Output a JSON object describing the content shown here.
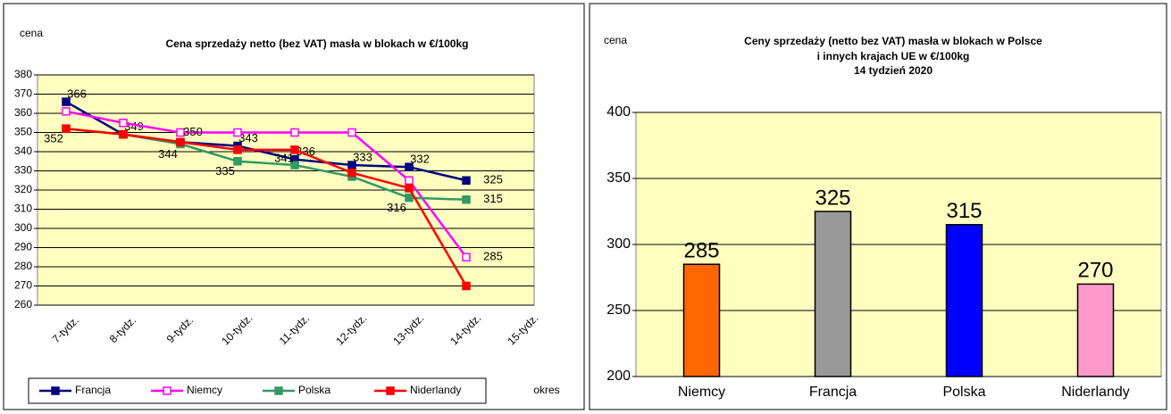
{
  "chart_data": [
    {
      "type": "line",
      "title": "Cena sprzedaży netto (bez VAT) masła w blokach w €/100kg",
      "y_label": "cena",
      "x_label": "okres",
      "categories": [
        "7-tydz.",
        "8-tydz.",
        "9-tydz.",
        "10-tydz.",
        "11-tydz.",
        "12-tydz.",
        "13-tydz.",
        "14-tydz.",
        "15-tydz."
      ],
      "ylim": [
        260,
        380
      ],
      "yticks": [
        260,
        270,
        280,
        290,
        300,
        310,
        320,
        330,
        340,
        350,
        360,
        370,
        380
      ],
      "grid": true,
      "background": "#ffffc0",
      "legend": "bottom",
      "series": [
        {
          "name": "Francja",
          "color": "#000080",
          "marker": "filled",
          "values": [
            366,
            349,
            345,
            343,
            336,
            333,
            332,
            325,
            null
          ],
          "value_labels": [
            "366",
            "349",
            null,
            "343",
            "336",
            "333",
            "332",
            "325",
            null
          ]
        },
        {
          "name": "Niemcy",
          "color": "#ff00ff",
          "marker": "open",
          "values": [
            361,
            355,
            350,
            350,
            350,
            350,
            325,
            285,
            null
          ],
          "value_labels": [
            null,
            null,
            "350",
            null,
            null,
            null,
            null,
            "285",
            null
          ]
        },
        {
          "name": "Polska",
          "color": "#339966",
          "marker": "filled",
          "values": [
            352,
            349,
            344,
            335,
            333,
            327,
            316,
            315,
            null
          ],
          "value_labels": [
            "352",
            null,
            "344",
            "335",
            null,
            null,
            "316",
            "315",
            null
          ]
        },
        {
          "name": "Niderlandy",
          "color": "#ff0000",
          "marker": "filled",
          "values": [
            352,
            349,
            345,
            341,
            341,
            329,
            321,
            270,
            null
          ],
          "value_labels": [
            null,
            null,
            null,
            null,
            "341",
            null,
            null,
            null,
            null
          ]
        }
      ]
    },
    {
      "type": "bar",
      "title": [
        "Ceny sprzedaży (netto bez VAT) masła w blokach w Polsce",
        "i innych krajach UE w €/100kg",
        "14 tydzień 2020"
      ],
      "y_label": "cena",
      "categories": [
        "Niemcy",
        "Francja",
        "Polska",
        "Niderlandy"
      ],
      "values": [
        285,
        325,
        315,
        270
      ],
      "colors": [
        "#ff6600",
        "#999999",
        "#0000ff",
        "#ff99cc"
      ],
      "ylim": [
        200,
        400
      ],
      "yticks": [
        200,
        250,
        300,
        350,
        400
      ],
      "grid": true,
      "background": "#ffffc0"
    }
  ]
}
